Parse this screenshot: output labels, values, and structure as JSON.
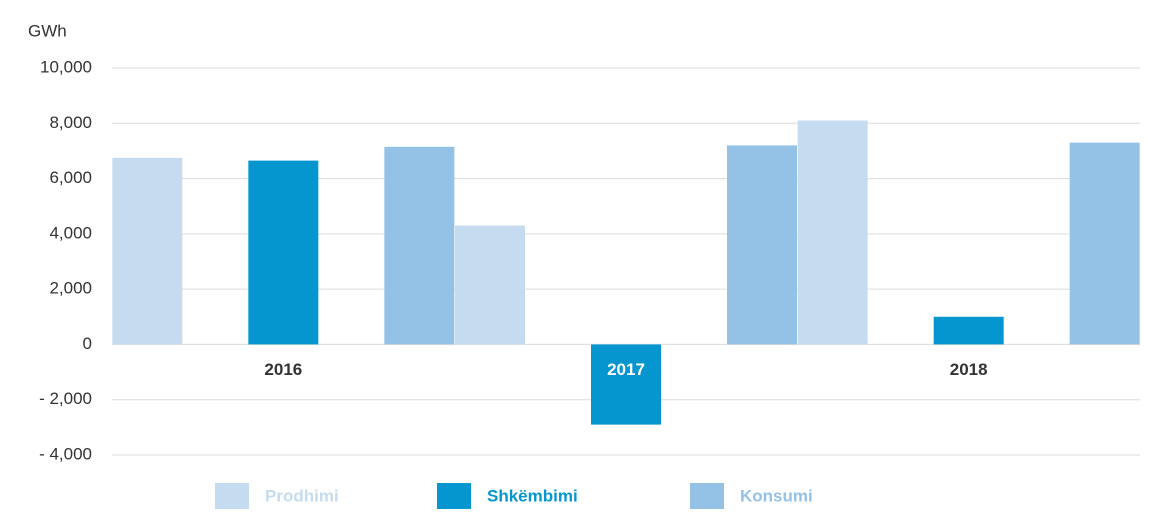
{
  "chart_data": {
    "type": "bar",
    "ylabel": "GWh",
    "categories": [
      "2016",
      "2017",
      "2018"
    ],
    "series": [
      {
        "name": "Prodhimi",
        "color": "#c5dcf0",
        "values": [
          6750,
          4300,
          8100
        ]
      },
      {
        "name": "Shkëmbimi",
        "color": "#0596d0",
        "values": [
          6650,
          -2900,
          1000
        ]
      },
      {
        "name": "Konsumi",
        "color": "#94c1e6",
        "values": [
          7150,
          7200,
          7300
        ]
      }
    ],
    "ylim": [
      -4000,
      10000
    ],
    "yticks": [
      {
        "value": -4000,
        "label": "- 4,000"
      },
      {
        "value": -2000,
        "label": "- 2,000"
      },
      0,
      {
        "value": 2000,
        "label": "2,000"
      },
      {
        "value": 4000,
        "label": "4,000"
      },
      {
        "value": 6000,
        "label": "6,000"
      },
      {
        "value": 8000,
        "label": "8,000"
      },
      {
        "value": 10000,
        "label": "10,000"
      }
    ],
    "grid": true,
    "legend": "bottom"
  }
}
